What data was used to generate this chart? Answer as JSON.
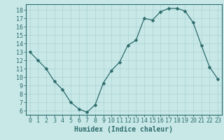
{
  "x": [
    0,
    1,
    2,
    3,
    4,
    5,
    6,
    7,
    8,
    9,
    10,
    11,
    12,
    13,
    14,
    15,
    16,
    17,
    18,
    19,
    20,
    21,
    22,
    23
  ],
  "y": [
    13,
    12,
    11,
    9.5,
    8.5,
    7.0,
    6.2,
    5.8,
    6.7,
    9.3,
    10.8,
    11.8,
    13.8,
    14.4,
    17.0,
    16.8,
    17.8,
    18.2,
    18.2,
    17.9,
    16.5,
    13.8,
    11.2,
    9.8
  ],
  "line_color": "#2d6b6b",
  "marker": "D",
  "marker_size": 2.5,
  "background_color": "#c8e8e8",
  "grid_color": "#aed4d4",
  "xlabel": "Humidex (Indice chaleur)",
  "xlim": [
    -0.5,
    23.5
  ],
  "ylim": [
    5.5,
    18.7
  ],
  "yticks": [
    6,
    7,
    8,
    9,
    10,
    11,
    12,
    13,
    14,
    15,
    16,
    17,
    18
  ],
  "xtick_labels": [
    "0",
    "1",
    "2",
    "3",
    "4",
    "5",
    "6",
    "7",
    "8",
    "9",
    "10",
    "11",
    "12",
    "13",
    "14",
    "15",
    "16",
    "17",
    "18",
    "19",
    "20",
    "21",
    "22",
    "23"
  ],
  "tick_color": "#2d6b6b",
  "label_fontsize": 7,
  "tick_fontsize": 6
}
